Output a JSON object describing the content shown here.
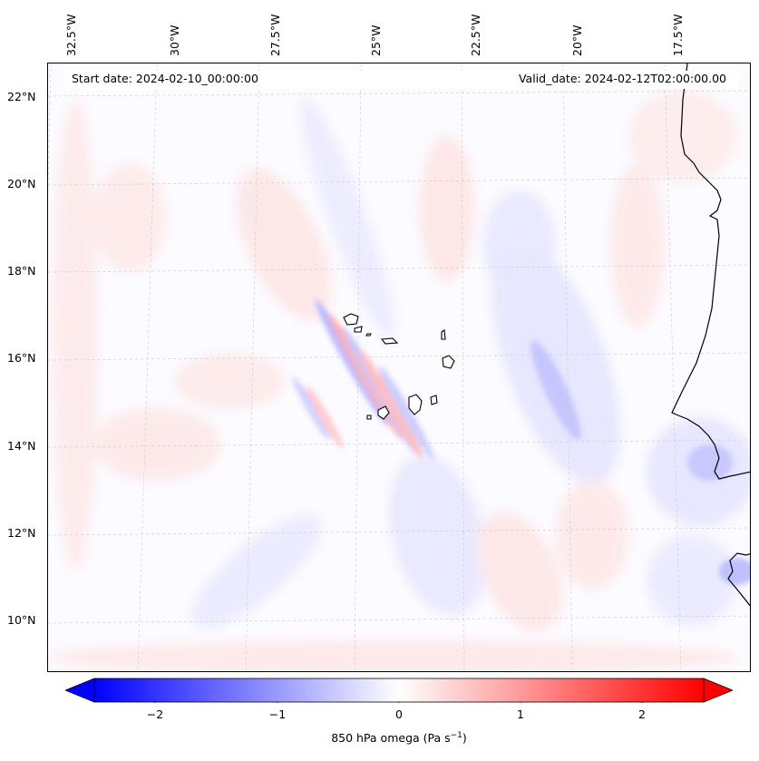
{
  "header": {
    "start_date": "Start date: 2024-02-10_00:00:00",
    "valid_date": "Valid_date: 2024-02-12T02:00:00.00"
  },
  "axes": {
    "longitude_labels": [
      "32.5°W",
      "30°W",
      "27.5°W",
      "25°W",
      "22.5°W",
      "20°W",
      "17.5°W"
    ],
    "latitude_labels": [
      "22°N",
      "20°N",
      "18°N",
      "16°N",
      "14°N",
      "12°N",
      "10°N"
    ]
  },
  "colorbar": {
    "label_main": "850 hPa omega (Pa s",
    "label_sup": "−1",
    "label_end": ")",
    "ticks": [
      "−2",
      "−1",
      "0",
      "1",
      "2"
    ],
    "tick_values": [
      -2,
      -1,
      0,
      1,
      2
    ],
    "range": [
      -2.5,
      2.5
    ],
    "extend": "both",
    "colormap": "bwr",
    "negative_color": "#0000ff",
    "zero_color": "#ffffff",
    "positive_color": "#ff0000"
  },
  "map": {
    "field": "850 hPa omega",
    "gridlines": true,
    "coastline_color": "#000000"
  }
}
